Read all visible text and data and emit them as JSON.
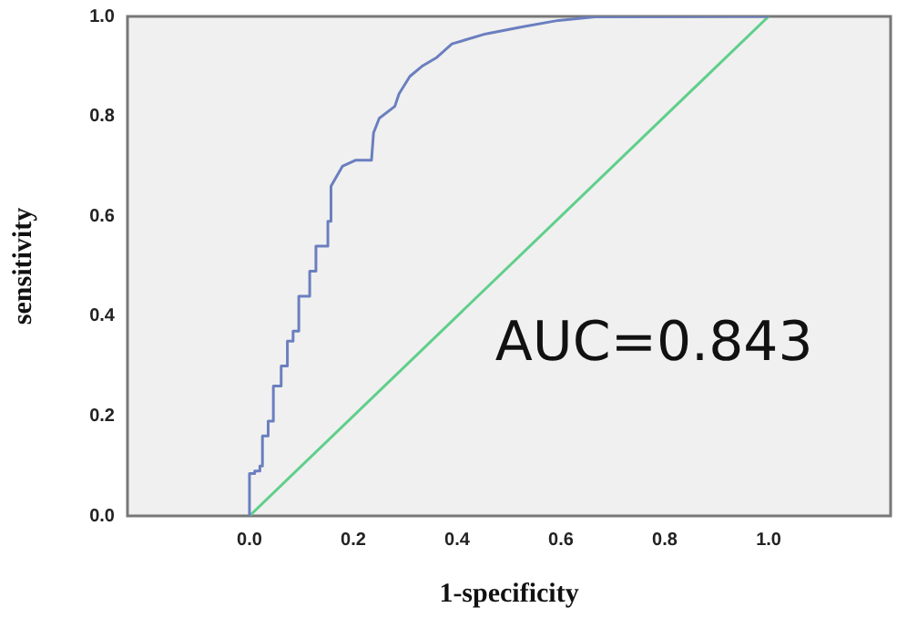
{
  "chart_data": {
    "type": "line",
    "xlabel": "1-specificity",
    "ylabel": "sensitivity",
    "xlim": [
      -0.235,
      1.235
    ],
    "ylim": [
      0,
      1
    ],
    "xticks": [
      {
        "value": 0,
        "label": "0.0"
      },
      {
        "value": 0.2,
        "label": "0.2"
      },
      {
        "value": 0.4,
        "label": "0.4"
      },
      {
        "value": 0.6,
        "label": "0.6"
      },
      {
        "value": 0.8,
        "label": "0.8"
      },
      {
        "value": 1,
        "label": "1.0"
      }
    ],
    "yticks": [
      {
        "value": 0,
        "label": "0.0"
      },
      {
        "value": 0.2,
        "label": "0.2"
      },
      {
        "value": 0.4,
        "label": "0.4"
      },
      {
        "value": 0.6,
        "label": "0.6"
      },
      {
        "value": 0.8,
        "label": "0.8"
      },
      {
        "value": 1,
        "label": "1.0"
      }
    ],
    "grid": false,
    "legend": false,
    "marker": "none",
    "line_style": "solid",
    "annotations": [
      "AUC=0.843"
    ],
    "series": [
      {
        "color": "#6b7fbf",
        "x": [
          0,
          0,
          0.01,
          0.01,
          0.02,
          0.02,
          0.025,
          0.025,
          0.036,
          0.036,
          0.046,
          0.046,
          0.061,
          0.061,
          0.073,
          0.073,
          0.084,
          0.084,
          0.095,
          0.095,
          0.116,
          0.116,
          0.128,
          0.128,
          0.151,
          0.151,
          0.157,
          0.157,
          0.179,
          0.204,
          0.235,
          0.239,
          0.25,
          0.28,
          0.288,
          0.309,
          0.332,
          0.361,
          0.39,
          0.455,
          0.525,
          0.595,
          0.665,
          1
        ],
        "values": [
          0,
          0.085,
          0.085,
          0.09,
          0.09,
          0.1,
          0.1,
          0.16,
          0.16,
          0.19,
          0.19,
          0.26,
          0.26,
          0.3,
          0.3,
          0.35,
          0.35,
          0.37,
          0.37,
          0.44,
          0.44,
          0.49,
          0.49,
          0.54,
          0.54,
          0.59,
          0.59,
          0.66,
          0.7,
          0.712,
          0.712,
          0.767,
          0.796,
          0.82,
          0.845,
          0.88,
          0.9,
          0.918,
          0.945,
          0.965,
          0.979,
          0.992,
          0.999,
          1
        ]
      },
      {
        "color": "#5fcf8a",
        "x": [
          0,
          1
        ],
        "values": [
          0,
          1
        ]
      }
    ]
  }
}
